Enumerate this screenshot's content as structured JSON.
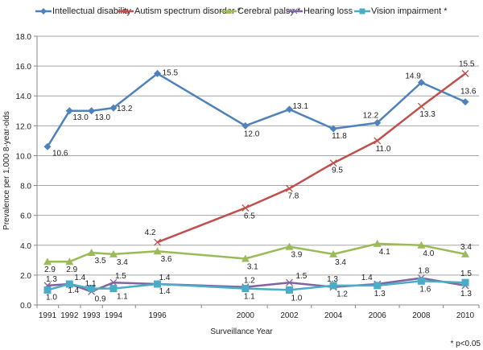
{
  "footnote": "* p<0.05",
  "chart_data": {
    "type": "line",
    "title": "",
    "xlabel": "Surveillance Year",
    "ylabel": "Prevalence per 1,000 8-year-olds",
    "ylim": [
      0,
      18
    ],
    "yticks": [
      "0.0",
      "2.0",
      "4.0",
      "6.0",
      "8.0",
      "10.0",
      "12.0",
      "14.0",
      "16.0",
      "18.0"
    ],
    "ytick_values": [
      0,
      2,
      4,
      6,
      8,
      10,
      12,
      14,
      16,
      18
    ],
    "x": [
      1991,
      1992,
      1993,
      1994,
      1996,
      2000,
      2002,
      2004,
      2006,
      2008,
      2010
    ],
    "xtick_labels": [
      "1991",
      "1992",
      "1993",
      "1994",
      "1996",
      "2000",
      "2002",
      "2004",
      "2006",
      "2008",
      "2010"
    ],
    "grid": true,
    "legend_position": "top",
    "series": [
      {
        "name": "Intellectual disability",
        "color": "#4F81BD",
        "marker": "diamond",
        "values": [
          10.6,
          13.0,
          13.0,
          13.2,
          15.5,
          12.0,
          13.1,
          11.8,
          12.2,
          14.9,
          13.6
        ],
        "labels": [
          "10.6",
          "13.0",
          "13.0",
          "13.2",
          "15.5",
          "12.0",
          "13.1",
          "11.8",
          "12.2",
          "14.9",
          "13.6"
        ]
      },
      {
        "name": "Autism spectrum disorder *",
        "color": "#C0504D",
        "marker": "x",
        "values": [
          null,
          null,
          null,
          null,
          4.2,
          6.5,
          7.8,
          9.5,
          11.0,
          13.3,
          15.5
        ],
        "labels": [
          null,
          null,
          null,
          null,
          "4.2",
          "6.5",
          "7.8",
          "9.5",
          "11.0",
          "13.3",
          "15.5"
        ]
      },
      {
        "name": "Cerebral palsy *",
        "color": "#9BBB59",
        "marker": "triangle",
        "values": [
          2.9,
          2.9,
          3.5,
          3.4,
          3.6,
          3.1,
          3.9,
          3.4,
          4.1,
          4.0,
          3.4
        ],
        "labels": [
          "2.9",
          "2.9",
          "3.5",
          "3.4",
          "3.6",
          "3.1",
          "3.9",
          "3.4",
          "4.1",
          "4.0",
          "3.4"
        ]
      },
      {
        "name": "Hearing loss",
        "color": "#8064A2",
        "marker": "x",
        "values": [
          1.3,
          1.4,
          0.9,
          1.5,
          1.4,
          1.2,
          1.5,
          1.2,
          1.4,
          1.8,
          1.3
        ],
        "labels": [
          "1.3",
          "1.4",
          "0.9",
          "1.5",
          "1.4",
          "1.2",
          "1.5",
          "1.2",
          "1.4",
          "1.8",
          "1.3"
        ]
      },
      {
        "name": "Vision impairment *",
        "color": "#4BACC6",
        "marker": "square",
        "values": [
          1.0,
          1.4,
          1.1,
          1.1,
          1.4,
          1.1,
          1.0,
          1.3,
          1.3,
          1.6,
          1.5
        ],
        "labels": [
          "1.0",
          "1.4",
          "1.1",
          "1.1",
          "1.4",
          "1.1",
          "1.0",
          "1.3",
          "1.3",
          "1.6",
          "1.5"
        ]
      }
    ]
  }
}
